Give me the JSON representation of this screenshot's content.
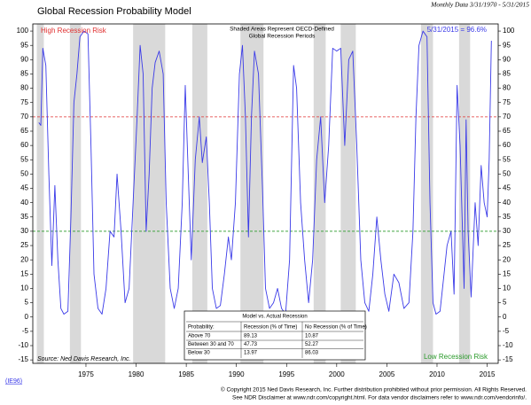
{
  "chart_data": {
    "type": "line",
    "title": "Global Recession Probability Model",
    "subtitle": "Monthly Data 3/31/1970 - 5/31/2015",
    "annotations": {
      "high": "High Recession Risk",
      "low": "Low Recession Risk",
      "shaded_note_1": "Shaded Areas Represent OECD-Defined",
      "shaded_note_2": "Global Recession Periods",
      "latest": "5/31/2015 = 96.6%",
      "source": "Source: Ned Davis Research, Inc.",
      "code": "(IE96)"
    },
    "footer": [
      "© Copyright 2015 Ned Davis Research, Inc.  Further distribution prohibited without prior permission.  All Rights Reserved.",
      "See NDR Disclaimer at www.ndr.com/copyright.html.  For data vendor disclaimers refer to www.ndr.com/vendorinfo/."
    ],
    "color": "#3a3ae8",
    "x": [
      1970.3,
      1970.5,
      1970.7,
      1971.0,
      1971.3,
      1971.6,
      1971.9,
      1972.2,
      1972.5,
      1972.8,
      1973.2,
      1973.5,
      1973.8,
      1974.1,
      1974.4,
      1974.8,
      1975.2,
      1975.5,
      1975.8,
      1976.2,
      1976.6,
      1977.0,
      1977.4,
      1977.8,
      1978.1,
      1978.5,
      1978.9,
      1979.3,
      1979.7,
      1980.1,
      1980.4,
      1980.7,
      1981.0,
      1981.3,
      1981.6,
      1981.9,
      1982.3,
      1982.7,
      1983.0,
      1983.4,
      1983.8,
      1984.2,
      1984.6,
      1984.9,
      1985.2,
      1985.5,
      1985.9,
      1986.3,
      1986.6,
      1987.0,
      1987.3,
      1987.6,
      1988.0,
      1988.4,
      1988.8,
      1989.2,
      1989.5,
      1989.9,
      1990.3,
      1990.6,
      1990.9,
      1991.2,
      1991.5,
      1991.8,
      1992.2,
      1992.6,
      1992.9,
      1993.3,
      1993.7,
      1994.1,
      1994.5,
      1994.9,
      1995.3,
      1995.7,
      1996.0,
      1996.4,
      1996.8,
      1997.2,
      1997.6,
      1998.0,
      1998.4,
      1998.8,
      1999.2,
      1999.6,
      2000.0,
      2000.4,
      2000.8,
      2001.2,
      2001.6,
      2002.0,
      2002.4,
      2002.8,
      2003.2,
      2003.6,
      2004.0,
      2004.4,
      2004.8,
      2005.2,
      2005.7,
      2006.2,
      2006.7,
      2007.2,
      2007.6,
      2007.9,
      2008.2,
      2008.6,
      2009.0,
      2009.3,
      2009.6,
      2009.9,
      2010.3,
      2010.7,
      2011.0,
      2011.4,
      2011.7,
      2012.0,
      2012.3,
      2012.7,
      2012.9,
      2013.1,
      2013.4,
      2013.8,
      2014.1,
      2014.4,
      2014.7,
      2015.0,
      2015.2,
      2015.42
    ],
    "values": [
      68,
      67,
      94,
      88,
      50,
      18,
      46,
      20,
      3,
      1,
      2,
      35,
      75,
      85,
      98,
      100,
      99,
      60,
      15,
      3,
      1,
      10,
      30,
      28,
      50,
      30,
      5,
      10,
      40,
      70,
      95,
      85,
      30,
      50,
      80,
      89,
      93,
      85,
      40,
      10,
      3,
      10,
      40,
      81,
      50,
      20,
      55,
      70,
      54,
      63,
      40,
      10,
      3,
      4,
      15,
      28,
      20,
      40,
      85,
      95,
      70,
      28,
      70,
      93,
      85,
      45,
      10,
      3,
      5,
      10,
      3,
      1,
      20,
      88,
      80,
      40,
      20,
      5,
      20,
      55,
      70,
      40,
      60,
      94,
      93,
      94,
      60,
      90,
      93,
      60,
      20,
      5,
      2,
      15,
      35,
      20,
      8,
      2,
      15,
      12,
      3,
      5,
      30,
      70,
      95,
      100,
      98,
      40,
      5,
      1,
      2,
      15,
      25,
      30,
      8,
      81,
      60,
      10,
      69,
      30,
      7,
      40,
      25,
      53,
      40,
      35,
      55,
      96.6
    ],
    "shaded": [
      [
        1970.1,
        1970.8
      ],
      [
        1973.4,
        1974.5
      ],
      [
        1979.7,
        1982.9
      ],
      [
        1985.6,
        1987.1
      ],
      [
        1990.4,
        1992.7
      ],
      [
        1997.7,
        1998.9
      ],
      [
        2000.4,
        2001.9
      ],
      [
        2008.4,
        2009.6
      ],
      [
        2012.2,
        2013.3
      ]
    ],
    "reference_lines": [
      {
        "value": 70,
        "color": "#e03030"
      },
      {
        "value": 30,
        "color": "#2a9a2a"
      }
    ],
    "xlim": [
      1969.7,
      2016.1
    ],
    "xticks": [
      1975,
      1980,
      1985,
      1990,
      1995,
      2000,
      2005,
      2010,
      2015
    ],
    "ylim": [
      -16.2,
      102.5
    ],
    "yticks": [
      -15,
      -10,
      -5,
      0,
      5,
      10,
      15,
      20,
      25,
      30,
      35,
      40,
      45,
      50,
      55,
      60,
      65,
      70,
      75,
      80,
      85,
      90,
      95,
      100
    ],
    "table": {
      "title": "Model vs. Actual Recession",
      "header": [
        "Probability:",
        "Recession (% of Time)",
        "No Recession (% of Time)"
      ],
      "rows": [
        [
          "Above 70",
          "89.13",
          "10.87"
        ],
        [
          "Between 30 and 70",
          "47.73",
          "52.27"
        ],
        [
          "Below 30",
          "13.97",
          "86.03"
        ]
      ]
    }
  }
}
